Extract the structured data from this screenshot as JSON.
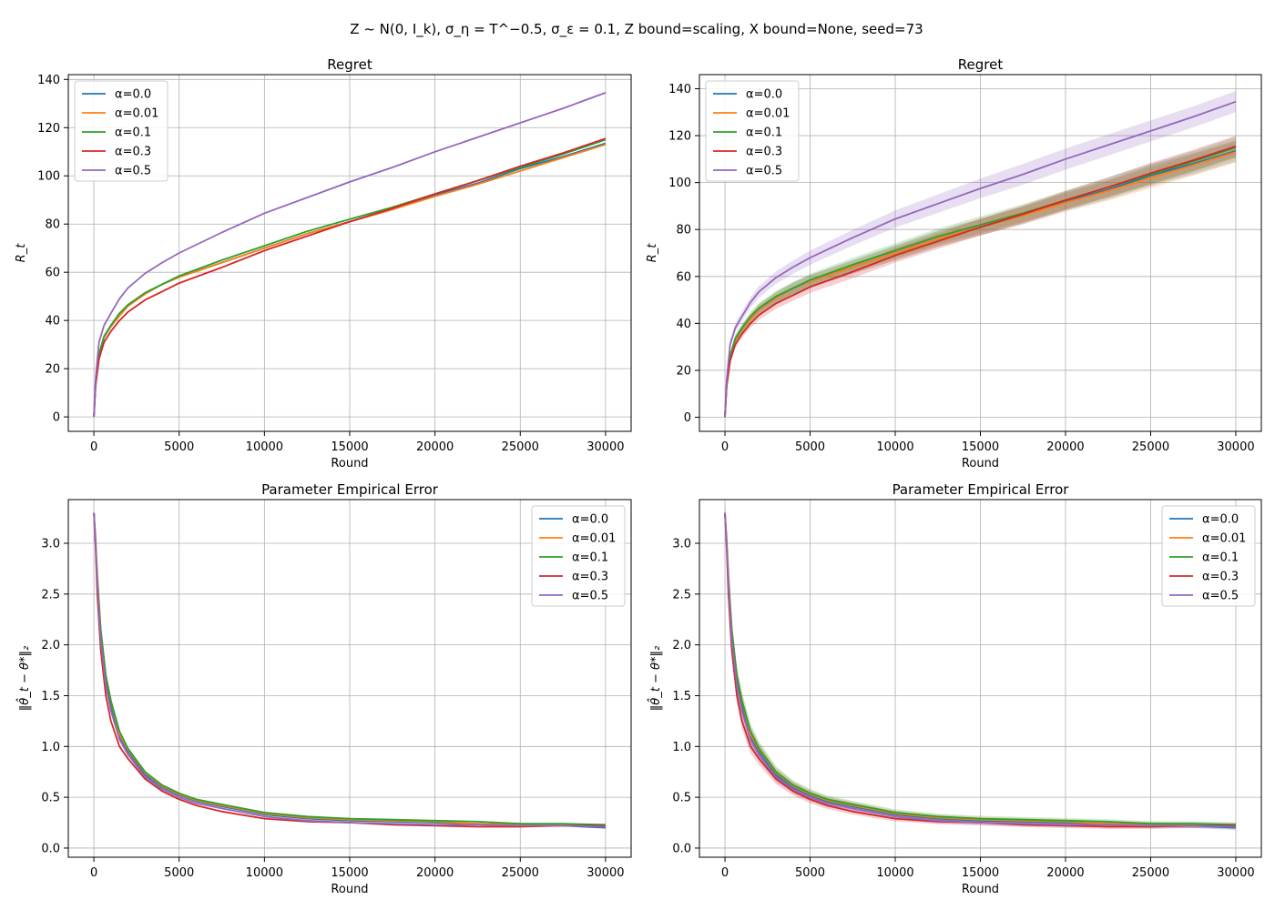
{
  "figure": {
    "suptitle": "Z ~ N(0, I_k), σ_η = T^−0.5, σ_ε = 0.1, Z bound=scaling, X bound=None, seed=73"
  },
  "series_colors": [
    "#1f77b4",
    "#ff7f0e",
    "#2ca02c",
    "#d62728",
    "#9467bd"
  ],
  "chart_data": [
    {
      "type": "line",
      "title": "Regret",
      "xlabel": "Round",
      "ylabel": "R_t",
      "xlim": [
        -1500,
        31500
      ],
      "ylim": [
        -6,
        142
      ],
      "xticks": [
        0,
        5000,
        10000,
        15000,
        20000,
        25000,
        30000
      ],
      "yticks": [
        0,
        20,
        40,
        60,
        80,
        100,
        120,
        140
      ],
      "grid": true,
      "legend_position": "upper-left",
      "bands": false,
      "x": [
        0,
        100,
        300,
        600,
        1000,
        1500,
        2000,
        3000,
        4000,
        5000,
        7500,
        10000,
        12500,
        15000,
        17500,
        20000,
        22500,
        25000,
        27500,
        30000
      ],
      "series": [
        {
          "name": "α=0.0",
          "values": [
            0,
            14,
            26,
            33,
            37.5,
            42,
            46,
            51,
            55,
            58,
            64,
            70,
            76,
            81,
            86,
            92,
            97,
            103,
            108,
            113.5
          ]
        },
        {
          "name": "α=0.01",
          "values": [
            0,
            14,
            26,
            33,
            37.5,
            42,
            46,
            51,
            55,
            58,
            64,
            70,
            76,
            81,
            86,
            91.5,
            96.5,
            102,
            107.5,
            113
          ]
        },
        {
          "name": "α=0.1",
          "values": [
            0,
            14,
            26,
            33.5,
            38,
            43,
            46.5,
            51.5,
            55,
            58.5,
            65,
            71,
            77,
            82,
            87,
            92.5,
            98,
            103.5,
            109,
            115
          ]
        },
        {
          "name": "α=0.3",
          "values": [
            0,
            13,
            24,
            31,
            35.5,
            40,
            43.5,
            48.5,
            52,
            55.5,
            62,
            69,
            75,
            81,
            86.5,
            92.5,
            98,
            104,
            109.5,
            115.5
          ]
        },
        {
          "name": "α=0.5",
          "values": [
            0,
            16,
            31,
            38,
            43,
            49,
            53.5,
            59.5,
            64,
            68,
            76.5,
            84.5,
            91,
            97.5,
            103.5,
            110,
            116,
            122,
            128,
            134.5
          ]
        }
      ]
    },
    {
      "type": "line",
      "title": "Regret",
      "xlabel": "Round",
      "ylabel": "R_t",
      "xlim": [
        -1500,
        31500
      ],
      "ylim": [
        -6,
        146
      ],
      "xticks": [
        0,
        5000,
        10000,
        15000,
        20000,
        25000,
        30000
      ],
      "yticks": [
        0,
        20,
        40,
        60,
        80,
        100,
        120,
        140
      ],
      "grid": true,
      "legend_position": "upper-left",
      "bands": true,
      "x": [
        0,
        100,
        300,
        600,
        1000,
        1500,
        2000,
        3000,
        4000,
        5000,
        7500,
        10000,
        12500,
        15000,
        17500,
        20000,
        22500,
        25000,
        27500,
        30000
      ],
      "series": [
        {
          "name": "α=0.0",
          "values": [
            0,
            14,
            26,
            33,
            37.5,
            42,
            46,
            51,
            55,
            58,
            64,
            70,
            76,
            81,
            86,
            92,
            97,
            103,
            108,
            113.5
          ]
        },
        {
          "name": "α=0.01",
          "values": [
            0,
            14,
            26,
            33,
            37.5,
            42,
            46,
            51,
            55,
            58,
            64,
            70,
            76,
            81,
            86,
            91.5,
            96.5,
            102,
            107.5,
            113
          ]
        },
        {
          "name": "α=0.1",
          "values": [
            0,
            14,
            26,
            33.5,
            38,
            43,
            46.5,
            51.5,
            55,
            58.5,
            65,
            71,
            77,
            82,
            87,
            92.5,
            98,
            103.5,
            109,
            115
          ]
        },
        {
          "name": "α=0.3",
          "values": [
            0,
            13,
            24,
            31,
            35.5,
            40,
            43.5,
            48.5,
            52,
            55.5,
            62,
            69,
            75,
            81,
            86.5,
            92.5,
            98,
            104,
            109.5,
            115.5
          ]
        },
        {
          "name": "α=0.5",
          "values": [
            0,
            16,
            31,
            38,
            43,
            49,
            53.5,
            59.5,
            64,
            68,
            76.5,
            84.5,
            91,
            97.5,
            103.5,
            110,
            116,
            122,
            128,
            134.5
          ]
        }
      ]
    },
    {
      "type": "line",
      "title": "Parameter Empirical Error",
      "xlabel": "Round",
      "ylabel": "‖θ̂_t − θ*‖₂",
      "xlim": [
        -1500,
        31500
      ],
      "ylim": [
        -0.09,
        3.43
      ],
      "xticks": [
        0,
        5000,
        10000,
        15000,
        20000,
        25000,
        30000
      ],
      "yticks": [
        0.0,
        0.5,
        1.0,
        1.5,
        2.0,
        2.5,
        3.0
      ],
      "grid": true,
      "legend_position": "upper-right",
      "bands": false,
      "x": [
        0,
        100,
        200,
        400,
        700,
        1000,
        1500,
        2000,
        3000,
        4000,
        5000,
        6000,
        7500,
        10000,
        12500,
        15000,
        17500,
        20000,
        22500,
        25000,
        27500,
        30000
      ],
      "series": [
        {
          "name": "α=0.0",
          "values": [
            3.3,
            3.0,
            2.6,
            2.1,
            1.65,
            1.4,
            1.1,
            0.95,
            0.72,
            0.6,
            0.52,
            0.46,
            0.41,
            0.33,
            0.29,
            0.27,
            0.26,
            0.25,
            0.24,
            0.23,
            0.22,
            0.2
          ]
        },
        {
          "name": "α=0.01",
          "values": [
            3.3,
            3.05,
            2.7,
            2.15,
            1.7,
            1.45,
            1.12,
            0.97,
            0.74,
            0.61,
            0.53,
            0.47,
            0.42,
            0.34,
            0.3,
            0.28,
            0.27,
            0.26,
            0.24,
            0.23,
            0.23,
            0.22
          ]
        },
        {
          "name": "α=0.1",
          "values": [
            3.3,
            3.0,
            2.65,
            2.15,
            1.7,
            1.45,
            1.15,
            0.98,
            0.75,
            0.62,
            0.54,
            0.48,
            0.43,
            0.35,
            0.31,
            0.29,
            0.28,
            0.27,
            0.26,
            0.24,
            0.24,
            0.23
          ]
        },
        {
          "name": "α=0.3",
          "values": [
            3.3,
            2.95,
            2.5,
            1.95,
            1.5,
            1.25,
            1.0,
            0.88,
            0.68,
            0.56,
            0.48,
            0.42,
            0.36,
            0.29,
            0.26,
            0.25,
            0.23,
            0.22,
            0.21,
            0.21,
            0.22,
            0.22
          ]
        },
        {
          "name": "α=0.5",
          "values": [
            3.3,
            3.0,
            2.6,
            2.05,
            1.6,
            1.35,
            1.07,
            0.92,
            0.7,
            0.58,
            0.5,
            0.44,
            0.39,
            0.31,
            0.27,
            0.25,
            0.24,
            0.23,
            0.23,
            0.22,
            0.22,
            0.21
          ]
        }
      ]
    },
    {
      "type": "line",
      "title": "Parameter Empirical Error",
      "xlabel": "Round",
      "ylabel": "‖θ̂_t − θ*‖₂",
      "xlim": [
        -1500,
        31500
      ],
      "ylim": [
        -0.09,
        3.43
      ],
      "xticks": [
        0,
        5000,
        10000,
        15000,
        20000,
        25000,
        30000
      ],
      "yticks": [
        0.0,
        0.5,
        1.0,
        1.5,
        2.0,
        2.5,
        3.0
      ],
      "grid": true,
      "legend_position": "upper-right",
      "bands": true,
      "x": [
        0,
        100,
        200,
        400,
        700,
        1000,
        1500,
        2000,
        3000,
        4000,
        5000,
        6000,
        7500,
        10000,
        12500,
        15000,
        17500,
        20000,
        22500,
        25000,
        27500,
        30000
      ],
      "series": [
        {
          "name": "α=0.0",
          "values": [
            3.3,
            3.0,
            2.6,
            2.1,
            1.65,
            1.4,
            1.1,
            0.95,
            0.72,
            0.6,
            0.52,
            0.46,
            0.41,
            0.33,
            0.29,
            0.27,
            0.26,
            0.25,
            0.24,
            0.23,
            0.22,
            0.2
          ]
        },
        {
          "name": "α=0.01",
          "values": [
            3.3,
            3.05,
            2.7,
            2.15,
            1.7,
            1.45,
            1.12,
            0.97,
            0.74,
            0.61,
            0.53,
            0.47,
            0.42,
            0.34,
            0.3,
            0.28,
            0.27,
            0.26,
            0.24,
            0.23,
            0.23,
            0.22
          ]
        },
        {
          "name": "α=0.1",
          "values": [
            3.3,
            3.0,
            2.65,
            2.15,
            1.7,
            1.45,
            1.15,
            0.98,
            0.75,
            0.62,
            0.54,
            0.48,
            0.43,
            0.35,
            0.31,
            0.29,
            0.28,
            0.27,
            0.26,
            0.24,
            0.24,
            0.23
          ]
        },
        {
          "name": "α=0.3",
          "values": [
            3.3,
            2.95,
            2.5,
            1.95,
            1.5,
            1.25,
            1.0,
            0.88,
            0.68,
            0.56,
            0.48,
            0.42,
            0.36,
            0.29,
            0.26,
            0.25,
            0.23,
            0.22,
            0.21,
            0.21,
            0.22,
            0.22
          ]
        },
        {
          "name": "α=0.5",
          "values": [
            3.3,
            3.0,
            2.6,
            2.05,
            1.6,
            1.35,
            1.07,
            0.92,
            0.7,
            0.58,
            0.5,
            0.44,
            0.39,
            0.31,
            0.27,
            0.25,
            0.24,
            0.23,
            0.23,
            0.22,
            0.22,
            0.21
          ]
        }
      ]
    }
  ]
}
